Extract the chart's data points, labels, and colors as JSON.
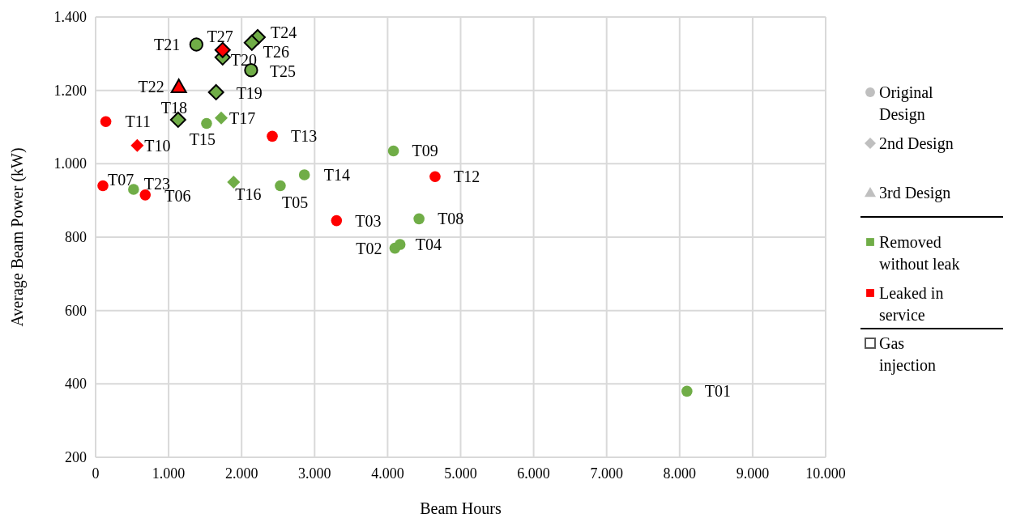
{
  "chart_data": {
    "type": "scatter",
    "xlabel": "Beam Hours",
    "ylabel": "Average Beam Power (kW)",
    "xlim": [
      0,
      10000
    ],
    "ylim": [
      200,
      1400
    ],
    "xticks": [
      0,
      {
        "value": 1000,
        "label": "1.000"
      },
      {
        "value": 2000,
        "label": "2.000"
      },
      {
        "value": 3000,
        "label": "3.000"
      },
      {
        "value": 4000,
        "label": "4.000"
      },
      {
        "value": 5000,
        "label": "5.000"
      },
      {
        "value": 6000,
        "label": "6.000"
      },
      {
        "value": 7000,
        "label": "7.000"
      },
      {
        "value": 8000,
        "label": "8.000"
      },
      {
        "value": 9000,
        "label": "9.000"
      },
      {
        "value": 10000,
        "label": "10.000"
      }
    ],
    "yticks": [
      200,
      400,
      600,
      800,
      {
        "value": 1000,
        "label": "1.000"
      },
      {
        "value": 1200,
        "label": "1.200"
      },
      {
        "value": 1400,
        "label": "1.400"
      }
    ],
    "grid": true,
    "annotations": [
      "Original Design",
      "2nd Design",
      "3rd Design",
      "Removed without leak",
      "Leaked in service",
      "Gas injection"
    ],
    "series": [
      {
        "marker": "circle",
        "color": "#70ad47",
        "x": [
          8100,
          4100,
          4170,
          2530,
          4430,
          4080,
          2860,
          1520,
          520
        ],
        "values": [
          380,
          770,
          780,
          940,
          850,
          1035,
          970,
          1110,
          930
        ],
        "value_labels": [
          "T01",
          "T02",
          "T04",
          "T05",
          "T08",
          "T09",
          "T14",
          "T15",
          "T23"
        ]
      },
      {
        "marker": "circle",
        "color": "#ff0000",
        "x": [
          3300,
          680,
          100,
          140,
          4650,
          2420
        ],
        "values": [
          845,
          915,
          940,
          1115,
          965,
          1075
        ],
        "value_labels": [
          "T03",
          "T06",
          "T07",
          "T11",
          "T12",
          "T13"
        ]
      },
      {
        "marker": "diamond",
        "color": "#ff0000",
        "x": [
          570
        ],
        "values": [
          1050
        ],
        "value_labels": [
          "T10"
        ]
      },
      {
        "marker": "diamond",
        "color": "#70ad47",
        "x": [
          1890,
          1720
        ],
        "values": [
          950,
          1125
        ],
        "value_labels": [
          "T16",
          "T17"
        ]
      },
      {
        "marker": "diamond",
        "color": "#70ad47",
        "line_style": "solid",
        "x": [
          1130,
          1650,
          1740,
          2220,
          2140
        ],
        "values": [
          1120,
          1195,
          1290,
          1345,
          1330
        ],
        "value_labels": [
          "T18",
          "T19",
          "T20",
          "T24",
          "T26"
        ]
      },
      {
        "marker": "diamond",
        "color": "#ff0000",
        "line_style": "solid",
        "x": [
          1740
        ],
        "values": [
          1310
        ],
        "value_labels": [
          "T27"
        ]
      },
      {
        "marker": "circle",
        "color": "#70ad47",
        "line_style": "solid",
        "x": [
          1380,
          2130
        ],
        "values": [
          1325,
          1255
        ],
        "value_labels": [
          "T21",
          "T25"
        ]
      },
      {
        "marker": "triangle",
        "color": "#ff0000",
        "line_style": "solid",
        "x": [
          1140
        ],
        "values": [
          1210
        ],
        "value_labels": [
          "T22"
        ]
      }
    ]
  }
}
